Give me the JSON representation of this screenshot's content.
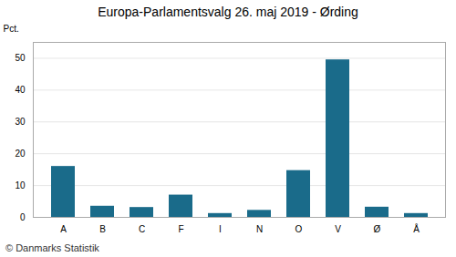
{
  "chart_data": {
    "type": "bar",
    "title": "Europa-Parlamentsvalg 26. maj 2019 - Ørding",
    "ylabel": "Pct.",
    "caption": "© Danmarks Statistik",
    "categories": [
      "A",
      "B",
      "C",
      "F",
      "I",
      "N",
      "O",
      "V",
      "Ø",
      "Å"
    ],
    "values": [
      16.0,
      3.5,
      3.1,
      7.0,
      1.2,
      2.2,
      14.7,
      49.5,
      3.2,
      1.2
    ],
    "color": "#1a6b8a",
    "ylim": [
      0,
      55
    ],
    "yticks": [
      0,
      10,
      20,
      30,
      40,
      50
    ],
    "grid": true
  }
}
